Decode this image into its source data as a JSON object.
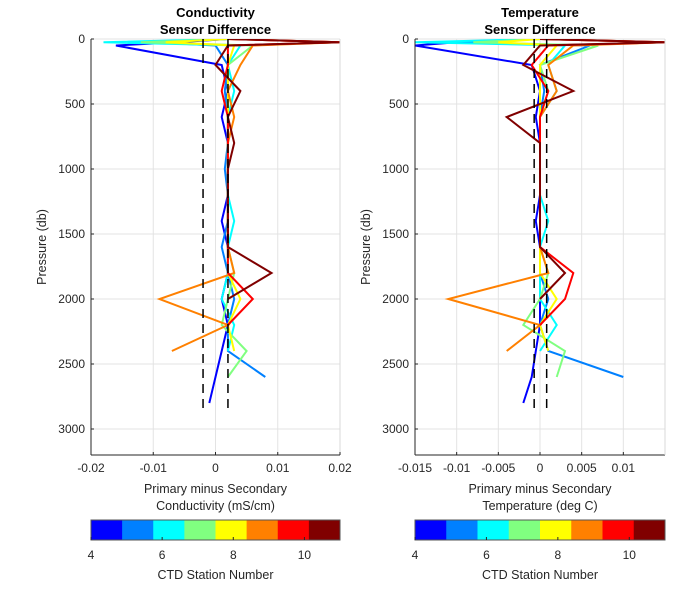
{
  "chart_data": [
    {
      "type": "line",
      "title": [
        "Conductivity",
        "Sensor Difference"
      ],
      "xlabel": [
        "Primary minus Secondary",
        "Conductivity (mS/cm)"
      ],
      "ylabel": "Pressure (db)",
      "xlim": [
        -0.02,
        0.02
      ],
      "ylim": [
        0,
        3200
      ],
      "y_reversed": true,
      "grid": true,
      "xticks": [
        -0.02,
        -0.01,
        0,
        0.01,
        0.02
      ],
      "xtick_labels": [
        "-0.02",
        "-0.01",
        "0",
        "0.01",
        "0.02"
      ],
      "yticks": [
        0,
        500,
        1000,
        1500,
        2000,
        2500,
        3000
      ],
      "ytick_labels": [
        "0",
        "500",
        "1000",
        "1500",
        "2000",
        "2500",
        "3000"
      ],
      "reference_lines": {
        "style": "dashed",
        "color": "#000000",
        "x": [
          -0.002,
          0.002
        ]
      },
      "pressure": [
        0,
        25,
        50,
        200,
        400,
        600,
        800,
        1000,
        1200,
        1400,
        1600,
        1800,
        2000,
        2200,
        2400,
        2600,
        2800
      ],
      "series": [
        {
          "station": 4,
          "values": [
            0.002,
            -0.006,
            -0.016,
            0.001,
            0.002,
            0.001,
            0.002,
            0.002,
            0.002,
            0.001,
            0.002,
            0.002,
            0.001,
            0.002,
            0.001,
            0.0,
            -0.001
          ]
        },
        {
          "station": 5,
          "values": [
            0.002,
            -0.01,
            0.0,
            0.002,
            0.0015,
            0.002,
            0.002,
            0.0015,
            0.002,
            0.002,
            0.001,
            0.002,
            0.003,
            0.002,
            0.002,
            0.008,
            null
          ]
        },
        {
          "station": 6,
          "values": [
            0.002,
            -0.018,
            0.004,
            0.002,
            0.003,
            0.002,
            0.002,
            0.002,
            0.002,
            0.003,
            0.002,
            0.002,
            0.001,
            0.003,
            0.002,
            null,
            null
          ]
        },
        {
          "station": 7,
          "values": [
            0.002,
            -0.012,
            0.006,
            0.002,
            0.002,
            0.002,
            0.002,
            0.002,
            0.002,
            0.002,
            0.002,
            0.003,
            0.002,
            0.001,
            0.005,
            0.002,
            null
          ]
        },
        {
          "station": 8,
          "values": [
            0.002,
            -0.008,
            0.003,
            0.002,
            0.002,
            0.002,
            0.002,
            0.002,
            0.002,
            0.002,
            0.002,
            0.002,
            0.004,
            0.002,
            0.003,
            null,
            null
          ]
        },
        {
          "station": 9,
          "values": [
            0.002,
            0.02,
            0.006,
            0.004,
            0.002,
            0.003,
            0.002,
            0.002,
            0.002,
            0.002,
            0.002,
            0.003,
            -0.009,
            0.002,
            -0.007,
            null,
            null
          ]
        },
        {
          "station": 10,
          "values": [
            0.002,
            0.02,
            0.002,
            0.002,
            0.001,
            0.002,
            0.002,
            0.002,
            0.002,
            0.002,
            0.002,
            0.002,
            0.006,
            0.002,
            null,
            null,
            null
          ]
        },
        {
          "station": 11,
          "values": [
            0.002,
            0.02,
            0.002,
            0.0,
            0.004,
            0.002,
            0.003,
            0.002,
            0.002,
            0.002,
            0.002,
            0.009,
            0.002,
            null,
            null,
            null,
            null
          ]
        }
      ]
    },
    {
      "type": "line",
      "title": [
        "Temperature",
        "Sensor Difference"
      ],
      "xlabel": [
        "Primary minus Secondary",
        "Temperature (deg C)"
      ],
      "ylabel": "Pressure (db)",
      "xlim": [
        -0.015,
        0.015
      ],
      "ylim": [
        0,
        3200
      ],
      "y_reversed": true,
      "grid": true,
      "xticks": [
        -0.015,
        -0.01,
        -0.005,
        0,
        0.005,
        0.01
      ],
      "xtick_labels": [
        "-0.015",
        "-0.01",
        "-0.005",
        "0",
        "0.005",
        "0.01"
      ],
      "yticks": [
        0,
        500,
        1000,
        1500,
        2000,
        2500,
        3000
      ],
      "ytick_labels": [
        "0",
        "500",
        "1000",
        "1500",
        "2000",
        "2500",
        "3000"
      ],
      "reference_lines": {
        "style": "dashed",
        "color": "#000000",
        "x": [
          -0.0007,
          0.0008
        ]
      },
      "pressure": [
        0,
        25,
        50,
        200,
        400,
        600,
        800,
        1000,
        1200,
        1400,
        1600,
        1800,
        2000,
        2200,
        2400,
        2600,
        2800
      ],
      "series": [
        {
          "station": 4,
          "values": [
            0.0,
            -0.01,
            -0.015,
            -0.001,
            0.0,
            -0.0005,
            0.0,
            0.0,
            0.0,
            -0.0005,
            0.0,
            0.0,
            0.0,
            0.0,
            -0.0005,
            -0.001,
            -0.002
          ]
        },
        {
          "station": 5,
          "values": [
            0.0,
            -0.012,
            0.006,
            0.0,
            0.0005,
            0.0,
            0.0,
            0.0,
            0.0,
            0.0,
            0.0,
            0.0,
            0.001,
            0.0,
            0.001,
            0.01,
            null
          ]
        },
        {
          "station": 6,
          "values": [
            0.0,
            -0.015,
            0.003,
            0.001,
            0.002,
            0.0,
            0.0,
            0.0,
            0.0,
            0.001,
            0.0,
            0.0,
            0.0,
            0.002,
            0.0,
            null,
            null
          ]
        },
        {
          "station": 7,
          "values": [
            0.0,
            -0.008,
            0.007,
            0.0,
            0.001,
            0.0,
            0.0,
            0.0,
            0.0,
            0.0,
            0.0,
            0.001,
            0.0,
            -0.002,
            0.003,
            0.002,
            null
          ]
        },
        {
          "station": 8,
          "values": [
            0.0,
            -0.005,
            0.002,
            0.0,
            0.0,
            0.0,
            0.0,
            0.0,
            0.0,
            0.0,
            0.0,
            0.0,
            0.002,
            0.0,
            0.001,
            null,
            null
          ]
        },
        {
          "station": 9,
          "values": [
            0.0,
            0.015,
            0.004,
            0.001,
            0.002,
            0.0,
            0.0,
            0.0,
            0.0,
            0.0,
            0.0,
            0.001,
            -0.011,
            0.0,
            -0.004,
            null,
            null
          ]
        },
        {
          "station": 10,
          "values": [
            0.0,
            0.015,
            0.001,
            -0.001,
            0.001,
            0.0,
            0.0,
            0.0,
            0.0,
            0.0,
            0.0,
            0.004,
            0.003,
            0.0,
            null,
            null,
            null
          ]
        },
        {
          "station": 11,
          "values": [
            0.0,
            0.015,
            0.0,
            -0.002,
            0.004,
            -0.004,
            0.0,
            0.0,
            0.0,
            0.0,
            0.0,
            0.003,
            0.0,
            null,
            null,
            null,
            null
          ]
        }
      ]
    }
  ],
  "colorbar": {
    "label": "CTD Station Number",
    "range": [
      4,
      11
    ],
    "ticks": [
      4,
      6,
      8,
      10
    ],
    "tick_labels": [
      "4",
      "6",
      "8",
      "10"
    ],
    "colors": [
      "#0000ff",
      "#0080ff",
      "#00ffff",
      "#80ff80",
      "#ffff00",
      "#ff8000",
      "#ff0000",
      "#800000"
    ]
  }
}
